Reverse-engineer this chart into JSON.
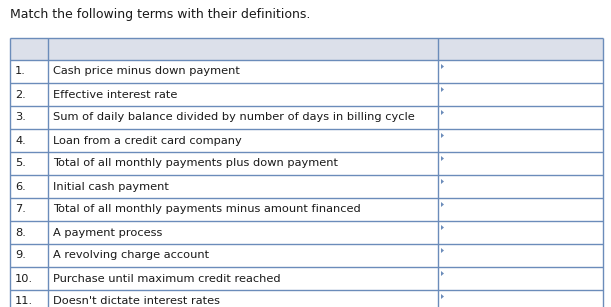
{
  "title": "Match the following terms with their definitions.",
  "rows": [
    {
      "num": "1.",
      "text": "Cash price minus down payment"
    },
    {
      "num": "2.",
      "text": "Effective interest rate"
    },
    {
      "num": "3.",
      "text": "Sum of daily balance divided by number of days in billing cycle"
    },
    {
      "num": "4.",
      "text": "Loan from a credit card company"
    },
    {
      "num": "5.",
      "text": "Total of all monthly payments plus down payment"
    },
    {
      "num": "6.",
      "text": "Initial cash payment"
    },
    {
      "num": "7.",
      "text": "Total of all monthly payments minus amount financed"
    },
    {
      "num": "8.",
      "text": "A payment process"
    },
    {
      "num": "9.",
      "text": "A revolving charge account"
    },
    {
      "num": "10.",
      "text": "Purchase until maximum credit reached"
    },
    {
      "num": "11.",
      "text": "Doesn't dictate interest rates"
    }
  ],
  "header_bg": "#dce0ea",
  "row_bg": "#ffffff",
  "border_color": "#6b8cba",
  "text_color": "#1a1a1a",
  "title_fontsize": 9.0,
  "cell_fontsize": 8.2,
  "fig_width": 6.11,
  "fig_height": 3.07,
  "dpi": 100
}
